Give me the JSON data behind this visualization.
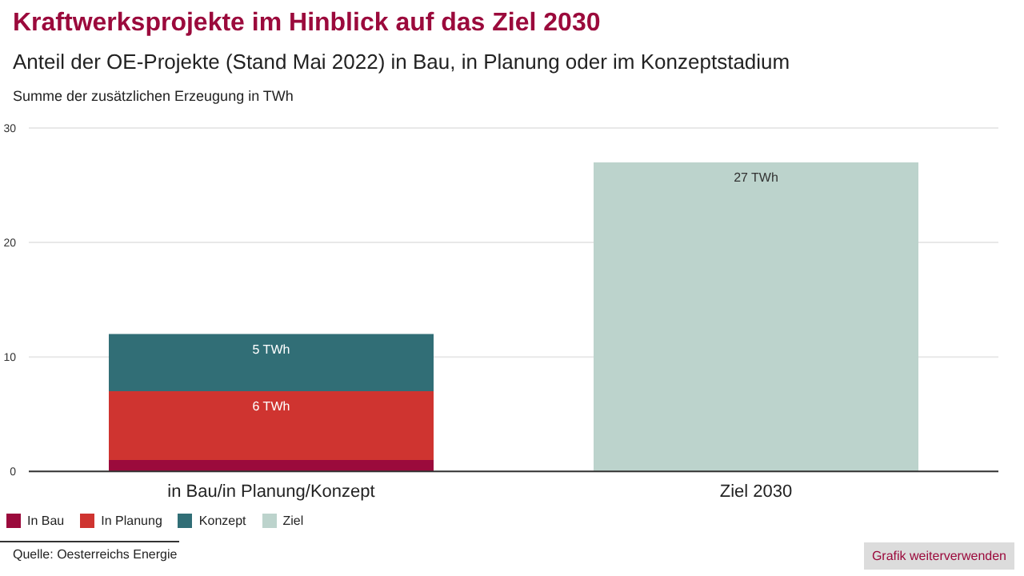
{
  "chart_data": {
    "type": "bar",
    "title": "Kraftwerksprojekte im Hinblick auf das Ziel 2030",
    "subtitle": "Anteil der OE-Projekte (Stand Mai 2022) in Bau, in Planung oder im Konzeptstadium",
    "ylabel": "Summe der zusätzlichen Erzeugung in TWh",
    "categories": [
      "in Bau/in Planung/Konzept",
      "Ziel 2030"
    ],
    "stacked": true,
    "series": [
      {
        "name": "In Bau",
        "color": "#9b0a3c",
        "values": [
          1,
          null
        ],
        "value_labels": [
          null,
          null
        ]
      },
      {
        "name": "In Planung",
        "color": "#cf3430",
        "values": [
          6,
          null
        ],
        "value_labels": [
          "6 TWh",
          null
        ]
      },
      {
        "name": "Konzept",
        "color": "#316e76",
        "values": [
          5,
          null
        ],
        "value_labels": [
          "5 TWh",
          null
        ]
      },
      {
        "name": "Ziel",
        "color": "#bcd3cc",
        "values": [
          null,
          27
        ],
        "value_labels": [
          null,
          "27 TWh"
        ]
      }
    ],
    "ylim": [
      0,
      30
    ],
    "yticks": [
      0,
      10,
      20,
      30
    ],
    "grid": "y",
    "legend": "bottom left",
    "annotations": [
      "Quelle: Oesterreichs Energie",
      "Grafik weiterverwenden"
    ]
  }
}
